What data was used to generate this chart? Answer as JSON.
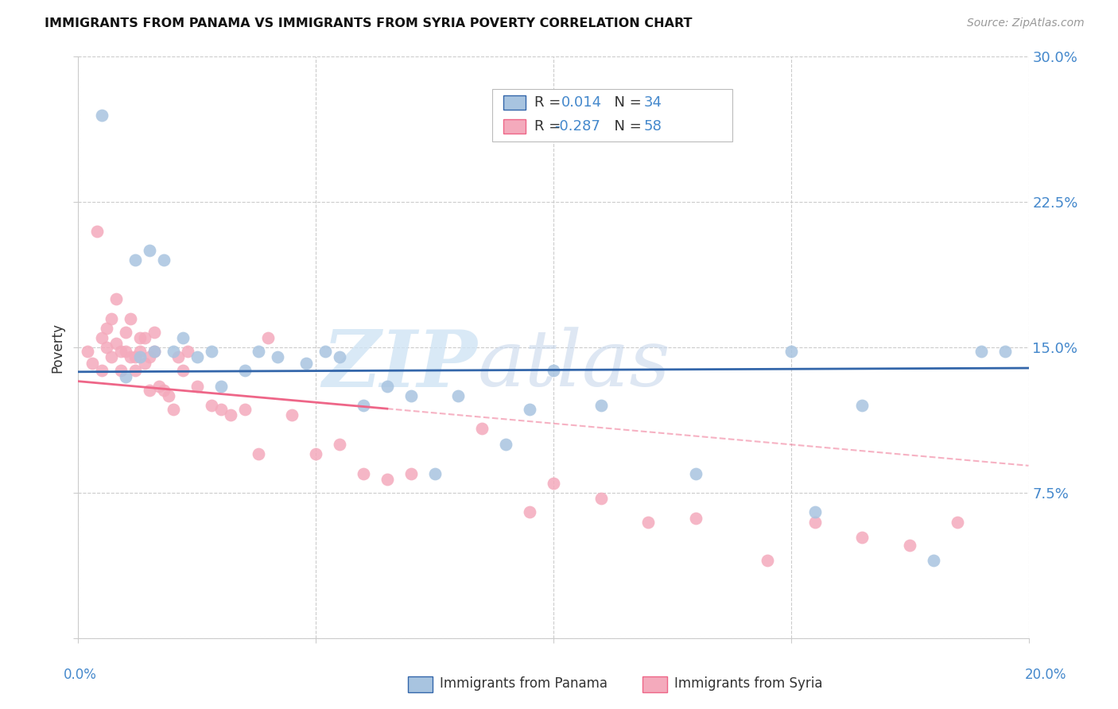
{
  "title": "IMMIGRANTS FROM PANAMA VS IMMIGRANTS FROM SYRIA POVERTY CORRELATION CHART",
  "source": "Source: ZipAtlas.com",
  "ylabel": "Poverty",
  "yticks": [
    0.0,
    0.075,
    0.15,
    0.225,
    0.3
  ],
  "ytick_labels": [
    "",
    "7.5%",
    "15.0%",
    "22.5%",
    "30.0%"
  ],
  "xticks": [
    0.0,
    0.05,
    0.1,
    0.15,
    0.2
  ],
  "xlim": [
    0.0,
    0.2
  ],
  "ylim": [
    0.0,
    0.3
  ],
  "legend_panama_R": "0.014",
  "legend_panama_N": "34",
  "legend_syria_R": "-0.287",
  "legend_syria_N": "58",
  "panama_color": "#A8C4E0",
  "syria_color": "#F4AABC",
  "panama_line_color": "#3366AA",
  "syria_line_color": "#EE6688",
  "blue_text_color": "#4488CC",
  "dark_text_color": "#333333",
  "grid_color": "#CCCCCC",
  "panama_points_x": [
    0.005,
    0.01,
    0.012,
    0.013,
    0.015,
    0.016,
    0.018,
    0.02,
    0.022,
    0.025,
    0.028,
    0.03,
    0.035,
    0.038,
    0.042,
    0.048,
    0.052,
    0.055,
    0.06,
    0.065,
    0.07,
    0.075,
    0.08,
    0.09,
    0.095,
    0.1,
    0.11,
    0.13,
    0.15,
    0.155,
    0.165,
    0.18,
    0.19,
    0.195
  ],
  "panama_points_y": [
    0.27,
    0.135,
    0.195,
    0.145,
    0.2,
    0.148,
    0.195,
    0.148,
    0.155,
    0.145,
    0.148,
    0.13,
    0.138,
    0.148,
    0.145,
    0.142,
    0.148,
    0.145,
    0.12,
    0.13,
    0.125,
    0.085,
    0.125,
    0.1,
    0.118,
    0.138,
    0.12,
    0.085,
    0.148,
    0.065,
    0.12,
    0.04,
    0.148,
    0.148
  ],
  "syria_points_x": [
    0.002,
    0.003,
    0.004,
    0.005,
    0.005,
    0.006,
    0.006,
    0.007,
    0.007,
    0.008,
    0.008,
    0.009,
    0.009,
    0.01,
    0.01,
    0.011,
    0.011,
    0.012,
    0.012,
    0.013,
    0.013,
    0.014,
    0.014,
    0.015,
    0.015,
    0.016,
    0.016,
    0.017,
    0.018,
    0.019,
    0.02,
    0.021,
    0.022,
    0.023,
    0.025,
    0.028,
    0.03,
    0.032,
    0.035,
    0.038,
    0.04,
    0.045,
    0.05,
    0.055,
    0.06,
    0.065,
    0.07,
    0.085,
    0.095,
    0.1,
    0.11,
    0.12,
    0.13,
    0.145,
    0.155,
    0.165,
    0.175,
    0.185
  ],
  "syria_points_y": [
    0.148,
    0.142,
    0.21,
    0.138,
    0.155,
    0.15,
    0.16,
    0.145,
    0.165,
    0.152,
    0.175,
    0.138,
    0.148,
    0.148,
    0.158,
    0.145,
    0.165,
    0.138,
    0.145,
    0.148,
    0.155,
    0.142,
    0.155,
    0.128,
    0.145,
    0.158,
    0.148,
    0.13,
    0.128,
    0.125,
    0.118,
    0.145,
    0.138,
    0.148,
    0.13,
    0.12,
    0.118,
    0.115,
    0.118,
    0.095,
    0.155,
    0.115,
    0.095,
    0.1,
    0.085,
    0.082,
    0.085,
    0.108,
    0.065,
    0.08,
    0.072,
    0.06,
    0.062,
    0.04,
    0.06,
    0.052,
    0.048,
    0.06
  ]
}
